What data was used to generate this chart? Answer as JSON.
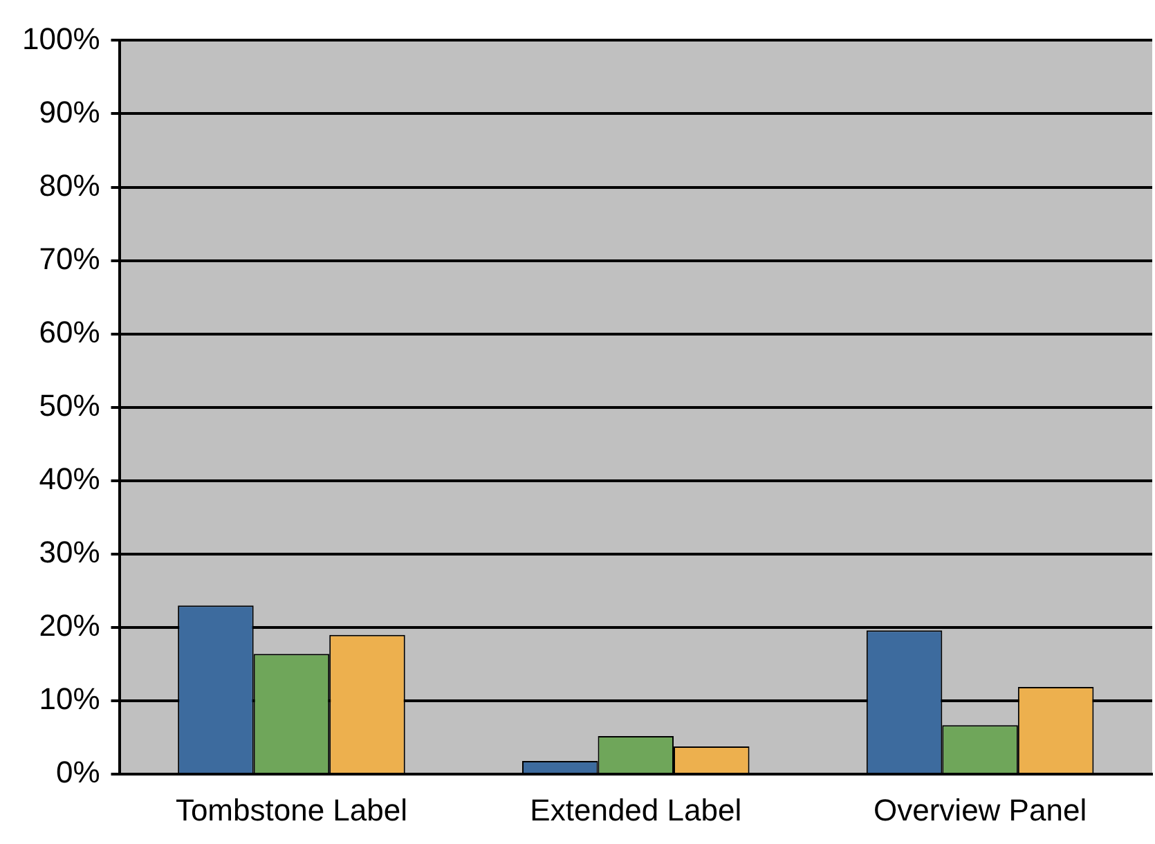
{
  "chart_data": {
    "type": "bar",
    "categories": [
      "Tombstone Label",
      "Extended Label",
      "Overview Panel"
    ],
    "series": [
      {
        "color": "#3d6b9e",
        "values": [
          23,
          1.8,
          19.6
        ]
      },
      {
        "color": "#6fa65a",
        "values": [
          16.4,
          5.2,
          6.7
        ]
      },
      {
        "color": "#edb04e",
        "values": [
          19,
          3.8,
          11.9
        ]
      }
    ],
    "ylim": [
      0,
      100
    ],
    "yticks": [
      {
        "value": 0,
        "label": "0%"
      },
      {
        "value": 10,
        "label": "10%"
      },
      {
        "value": 20,
        "label": "20%"
      },
      {
        "value": 30,
        "label": "30%"
      },
      {
        "value": 40,
        "label": "40%"
      },
      {
        "value": 50,
        "label": "50%"
      },
      {
        "value": 60,
        "label": "60%"
      },
      {
        "value": 70,
        "label": "70%"
      },
      {
        "value": 80,
        "label": "80%"
      },
      {
        "value": 90,
        "label": "90%"
      },
      {
        "value": 100,
        "label": "100%"
      }
    ],
    "grid": "y",
    "legend": false
  }
}
